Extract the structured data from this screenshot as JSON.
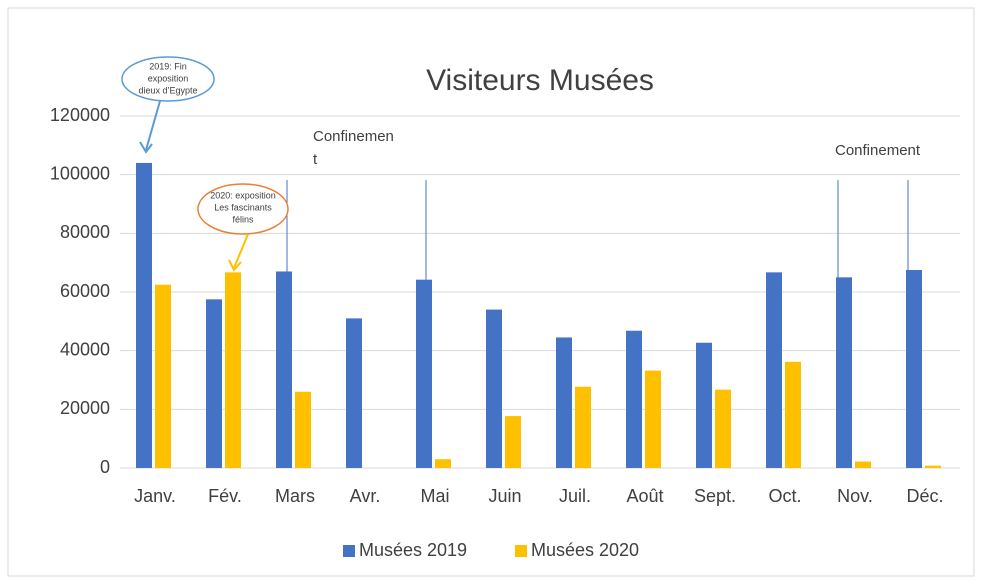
{
  "chart_data": {
    "type": "bar",
    "title": "Visiteurs Musées",
    "categories": [
      "Janv.",
      "Fév.",
      "Mars",
      "Avr.",
      "Mai",
      "Juin",
      "Juil.",
      "Août",
      "Sept.",
      "Oct.",
      "Nov.",
      "Déc."
    ],
    "series": [
      {
        "name": "Musées 2019",
        "color": "#4472c4",
        "values": [
          104000,
          57500,
          67000,
          51000,
          64200,
          54000,
          44500,
          46800,
          42700,
          66700,
          65000,
          67500
        ]
      },
      {
        "name": "Musées 2020",
        "color": "#ffc000",
        "values": [
          62500,
          66700,
          26000,
          0,
          3000,
          17700,
          27700,
          33200,
          26700,
          36200,
          2200,
          800
        ]
      }
    ],
    "ylim": [
      0,
      120000
    ],
    "yticks": [
      0,
      20000,
      40000,
      60000,
      80000,
      100000,
      120000
    ],
    "grid": true,
    "legend": "bottom",
    "annotations": [
      {
        "lines": [
          "2019: Fin",
          "exposition",
          "dieux d’Egypte"
        ]
      },
      {
        "lines": [
          "2020: exposition",
          "Les fascinants",
          "félins"
        ]
      },
      {
        "lines": [
          "Confinemen",
          "t"
        ]
      },
      {
        "lines": [
          "Confinement"
        ]
      }
    ]
  }
}
